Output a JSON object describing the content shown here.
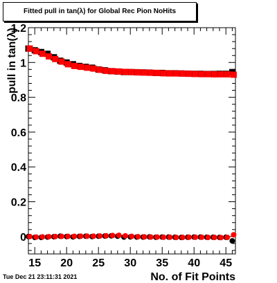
{
  "title": "Fitted pull in tan(λ) for Global Rec Pion NoHits",
  "timestamp": "Tue Dec 21 23:11:31 2021",
  "chart_data": {
    "type": "scatter",
    "title": "Fitted pull in tan(λ) for Global Rec Pion NoHits",
    "xlabel": "No. of Fit Points",
    "ylabel": "pull in tan(λ)",
    "xlim": [
      14,
      46.5
    ],
    "ylim": [
      -0.1,
      1.2
    ],
    "xticks": [
      15,
      20,
      25,
      30,
      35,
      40,
      45
    ],
    "yticks": [
      0,
      0.2,
      0.4,
      0.6,
      0.8,
      1,
      1.2
    ],
    "ytick_labels": [
      "0",
      "0.2",
      "0.4",
      "0.6",
      "0.8",
      "1",
      "1.2"
    ],
    "colors": {
      "series_black": "#000000",
      "series_red": "#ff0000"
    },
    "x": [
      14,
      15,
      16,
      17,
      18,
      19,
      20,
      21,
      22,
      23,
      24,
      25,
      26,
      27,
      28,
      29,
      30,
      31,
      32,
      33,
      34,
      35,
      36,
      37,
      38,
      39,
      40,
      41,
      42,
      43,
      44,
      45,
      46
    ],
    "series": [
      {
        "color": "#000000",
        "marker": "square",
        "values": [
          1.08,
          1.07,
          1.06,
          1.05,
          1.03,
          1.01,
          1.0,
          0.99,
          0.98,
          0.975,
          0.97,
          0.96,
          0.955,
          0.95,
          0.948,
          0.945,
          0.945,
          0.944,
          0.943,
          0.942,
          0.94,
          0.94,
          0.938,
          0.938,
          0.937,
          0.936,
          0.935,
          0.935,
          0.934,
          0.934,
          0.935,
          0.935,
          0.945
        ]
      },
      {
        "color": "#ff0000",
        "marker": "square",
        "values": [
          1.08,
          1.065,
          1.05,
          1.035,
          1.02,
          1.005,
          0.99,
          0.98,
          0.975,
          0.97,
          0.965,
          0.958,
          0.952,
          0.95,
          0.948,
          0.946,
          0.945,
          0.943,
          0.942,
          0.941,
          0.94,
          0.938,
          0.937,
          0.937,
          0.936,
          0.935,
          0.934,
          0.933,
          0.933,
          0.932,
          0.932,
          0.932,
          0.93
        ]
      },
      {
        "color": "#000000",
        "marker": "circle",
        "values": [
          0.0,
          -0.005,
          -0.005,
          -0.003,
          -0.001,
          0.002,
          0.0,
          -0.002,
          0.001,
          0.002,
          0.0,
          0.002,
          0.003,
          0.004,
          0.002,
          -0.003,
          -0.002,
          -0.003,
          -0.003,
          -0.002,
          -0.004,
          -0.003,
          -0.003,
          -0.004,
          -0.005,
          -0.004,
          -0.003,
          -0.003,
          -0.004,
          -0.004,
          -0.005,
          -0.004,
          -0.025
        ]
      },
      {
        "color": "#ff0000",
        "marker": "circle",
        "values": [
          0.0,
          -0.003,
          -0.002,
          -0.001,
          0.0,
          0.001,
          0.001,
          0.001,
          0.002,
          0.002,
          0.002,
          0.003,
          0.004,
          0.006,
          0.007,
          0.004,
          0.001,
          -0.001,
          -0.002,
          -0.003,
          -0.003,
          -0.004,
          -0.004,
          -0.005,
          -0.005,
          -0.004,
          -0.004,
          -0.004,
          -0.005,
          -0.005,
          -0.006,
          -0.005,
          0.01
        ]
      }
    ]
  }
}
